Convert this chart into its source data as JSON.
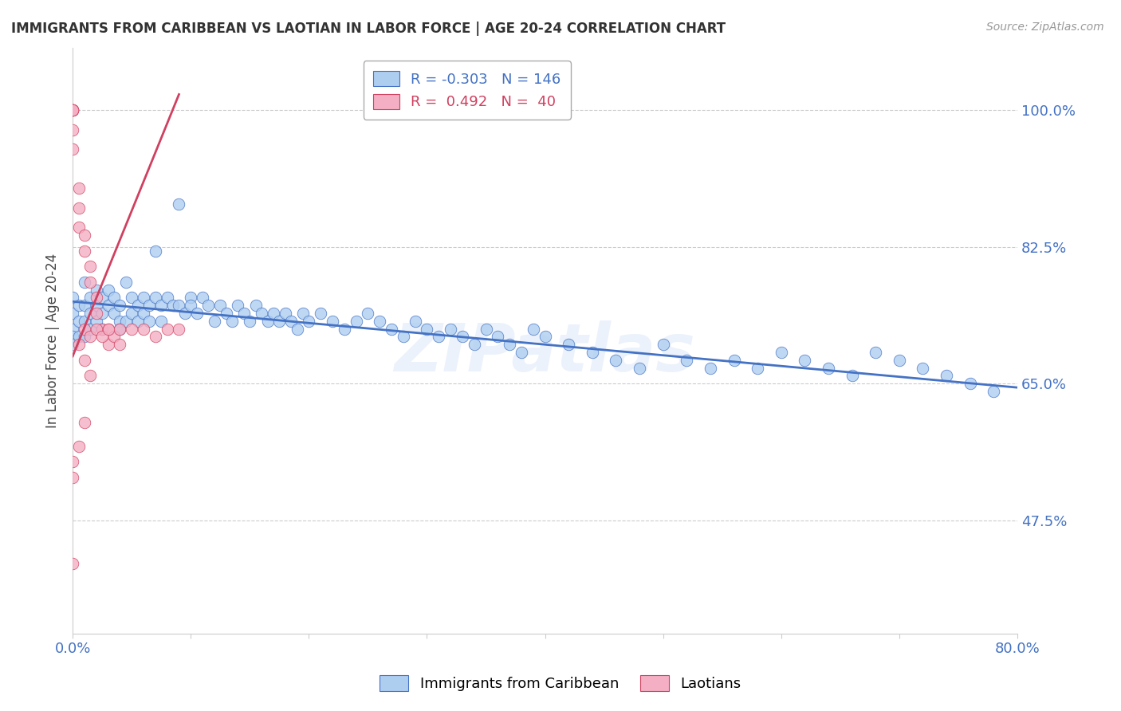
{
  "title": "IMMIGRANTS FROM CARIBBEAN VS LAOTIAN IN LABOR FORCE | AGE 20-24 CORRELATION CHART",
  "source": "Source: ZipAtlas.com",
  "ylabel": "In Labor Force | Age 20-24",
  "ytick_labels": [
    "100.0%",
    "82.5%",
    "65.0%",
    "47.5%"
  ],
  "ytick_values": [
    1.0,
    0.825,
    0.65,
    0.475
  ],
  "xlim": [
    0.0,
    0.8
  ],
  "ylim": [
    0.33,
    1.08
  ],
  "blue_color": "#aecef0",
  "pink_color": "#f4afc4",
  "blue_line_color": "#4472c4",
  "pink_line_color": "#d04060",
  "label_color": "#4472c4",
  "blue_scatter_x": [
    0.0,
    0.0,
    0.0,
    0.0,
    0.0,
    0.005,
    0.005,
    0.005,
    0.01,
    0.01,
    0.01,
    0.01,
    0.015,
    0.015,
    0.015,
    0.02,
    0.02,
    0.02,
    0.025,
    0.025,
    0.025,
    0.03,
    0.03,
    0.035,
    0.035,
    0.04,
    0.04,
    0.04,
    0.045,
    0.045,
    0.05,
    0.05,
    0.055,
    0.055,
    0.06,
    0.06,
    0.065,
    0.065,
    0.07,
    0.07,
    0.075,
    0.075,
    0.08,
    0.085,
    0.09,
    0.09,
    0.095,
    0.1,
    0.1,
    0.105,
    0.11,
    0.115,
    0.12,
    0.125,
    0.13,
    0.135,
    0.14,
    0.145,
    0.15,
    0.155,
    0.16,
    0.165,
    0.17,
    0.175,
    0.18,
    0.185,
    0.19,
    0.195,
    0.2,
    0.21,
    0.22,
    0.23,
    0.24,
    0.25,
    0.26,
    0.27,
    0.28,
    0.29,
    0.3,
    0.31,
    0.32,
    0.33,
    0.34,
    0.35,
    0.36,
    0.37,
    0.38,
    0.39,
    0.4,
    0.42,
    0.44,
    0.46,
    0.48,
    0.5,
    0.52,
    0.54,
    0.56,
    0.58,
    0.6,
    0.62,
    0.64,
    0.66,
    0.68,
    0.7,
    0.72,
    0.74,
    0.76,
    0.78
  ],
  "blue_scatter_y": [
    0.76,
    0.74,
    0.72,
    0.71,
    0.7,
    0.75,
    0.73,
    0.71,
    0.78,
    0.75,
    0.73,
    0.71,
    0.76,
    0.74,
    0.72,
    0.77,
    0.75,
    0.73,
    0.76,
    0.74,
    0.72,
    0.77,
    0.75,
    0.76,
    0.74,
    0.75,
    0.73,
    0.72,
    0.78,
    0.73,
    0.76,
    0.74,
    0.75,
    0.73,
    0.76,
    0.74,
    0.75,
    0.73,
    0.82,
    0.76,
    0.75,
    0.73,
    0.76,
    0.75,
    0.88,
    0.75,
    0.74,
    0.76,
    0.75,
    0.74,
    0.76,
    0.75,
    0.73,
    0.75,
    0.74,
    0.73,
    0.75,
    0.74,
    0.73,
    0.75,
    0.74,
    0.73,
    0.74,
    0.73,
    0.74,
    0.73,
    0.72,
    0.74,
    0.73,
    0.74,
    0.73,
    0.72,
    0.73,
    0.74,
    0.73,
    0.72,
    0.71,
    0.73,
    0.72,
    0.71,
    0.72,
    0.71,
    0.7,
    0.72,
    0.71,
    0.7,
    0.69,
    0.72,
    0.71,
    0.7,
    0.69,
    0.68,
    0.67,
    0.7,
    0.68,
    0.67,
    0.68,
    0.67,
    0.69,
    0.68,
    0.67,
    0.66,
    0.69,
    0.68,
    0.67,
    0.66,
    0.65,
    0.64
  ],
  "pink_scatter_x": [
    0.0,
    0.0,
    0.0,
    0.0,
    0.0,
    0.0,
    0.0,
    0.005,
    0.005,
    0.005,
    0.01,
    0.01,
    0.015,
    0.015,
    0.02,
    0.02,
    0.025,
    0.03,
    0.03,
    0.035,
    0.04,
    0.04,
    0.05,
    0.06,
    0.07,
    0.08,
    0.09,
    0.01,
    0.015,
    0.02,
    0.025,
    0.03,
    0.01,
    0.005,
    0.0,
    0.0,
    0.0,
    0.005,
    0.01,
    0.015
  ],
  "pink_scatter_y": [
    1.0,
    1.0,
    1.0,
    1.0,
    1.0,
    0.975,
    0.95,
    0.9,
    0.875,
    0.85,
    0.84,
    0.82,
    0.8,
    0.78,
    0.76,
    0.74,
    0.72,
    0.72,
    0.7,
    0.71,
    0.72,
    0.7,
    0.72,
    0.72,
    0.71,
    0.72,
    0.72,
    0.72,
    0.71,
    0.72,
    0.71,
    0.72,
    0.6,
    0.57,
    0.55,
    0.53,
    0.42,
    0.7,
    0.68,
    0.66
  ],
  "blue_trend_x": [
    0.0,
    0.8
  ],
  "blue_trend_y": [
    0.755,
    0.645
  ],
  "pink_trend_x": [
    0.0,
    0.09
  ],
  "pink_trend_y": [
    0.685,
    1.02
  ],
  "watermark": "ZIPatlas",
  "background_color": "#ffffff",
  "grid_color": "#cccccc"
}
